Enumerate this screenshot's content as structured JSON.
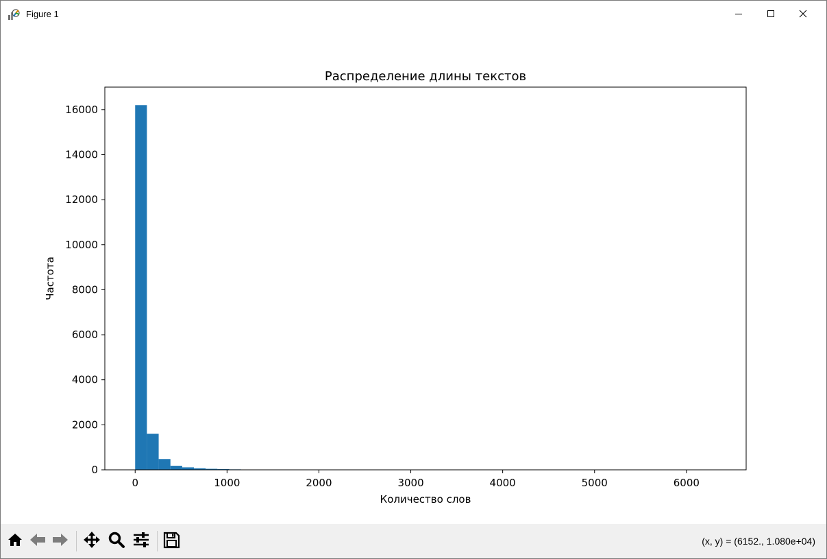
{
  "window": {
    "title": "Figure 1",
    "app_icon": "matplotlib-figure-icon",
    "controls": {
      "minimize_icon": "minimize-icon",
      "maximize_icon": "maximize-icon",
      "close_icon": "close-icon"
    }
  },
  "toolbar": {
    "buttons": [
      {
        "name": "home-button",
        "icon": "home-icon"
      },
      {
        "name": "back-button",
        "icon": "back-arrow-icon"
      },
      {
        "name": "forward-button",
        "icon": "forward-arrow-icon"
      },
      {
        "name": "pan-button",
        "icon": "move-icon"
      },
      {
        "name": "zoom-button",
        "icon": "zoom-icon"
      },
      {
        "name": "configure-subplots-button",
        "icon": "sliders-icon"
      },
      {
        "name": "save-button",
        "icon": "save-icon"
      }
    ],
    "coordinates": "(x, y) = (6152., 1.080e+04)"
  },
  "chart_data": {
    "type": "bar",
    "title": "Распределение длины текстов",
    "xlabel": "Количество слов",
    "ylabel": "Частота",
    "xlim": [
      -330,
      6650
    ],
    "ylim": [
      0,
      17000
    ],
    "x_ticks": [
      0,
      1000,
      2000,
      3000,
      4000,
      5000,
      6000
    ],
    "y_ticks": [
      0,
      2000,
      4000,
      6000,
      8000,
      10000,
      12000,
      14000,
      16000
    ],
    "grid": false,
    "bar_color": "#1f77b4",
    "bins": [
      {
        "start": 0,
        "end": 128,
        "count": 16200
      },
      {
        "start": 128,
        "end": 256,
        "count": 1600
      },
      {
        "start": 256,
        "end": 384,
        "count": 480
      },
      {
        "start": 384,
        "end": 512,
        "count": 180
      },
      {
        "start": 512,
        "end": 640,
        "count": 110
      },
      {
        "start": 640,
        "end": 768,
        "count": 70
      },
      {
        "start": 768,
        "end": 896,
        "count": 45
      },
      {
        "start": 896,
        "end": 1024,
        "count": 30
      },
      {
        "start": 1024,
        "end": 1152,
        "count": 20
      },
      {
        "start": 1152,
        "end": 1280,
        "count": 10
      },
      {
        "start": 1280,
        "end": 1408,
        "count": 5
      },
      {
        "start": 1408,
        "end": 1536,
        "count": 3
      },
      {
        "start": 1536,
        "end": 1664,
        "count": 2
      },
      {
        "start": 1664,
        "end": 1792,
        "count": 1
      },
      {
        "start": 1792,
        "end": 1920,
        "count": 1
      },
      {
        "start": 1920,
        "end": 2048,
        "count": 1
      },
      {
        "start": 6400,
        "end": 6528,
        "count": 1
      }
    ]
  }
}
